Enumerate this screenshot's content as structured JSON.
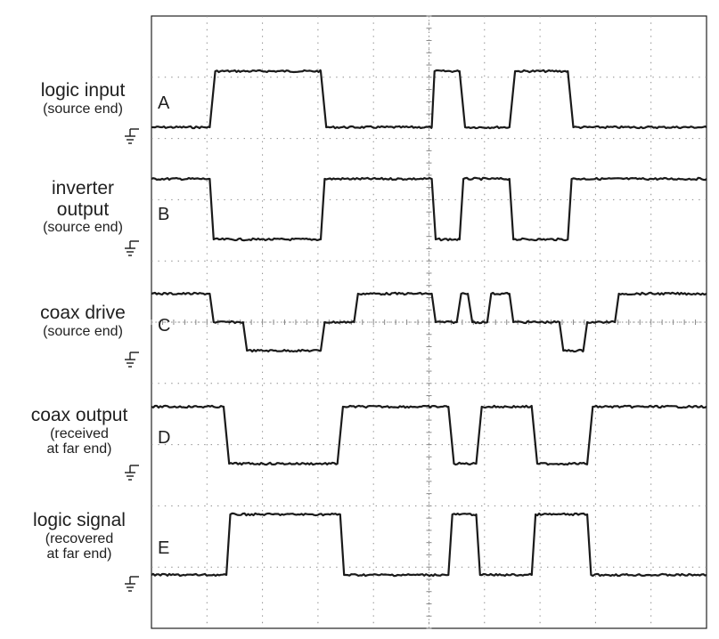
{
  "chart_data": {
    "type": "line",
    "title": "",
    "xlabel": "",
    "ylabel": "",
    "grid": true,
    "x_divisions": 10,
    "y_divisions": 10,
    "x_range": [
      0,
      10
    ],
    "series": [
      {
        "name": "A",
        "label_main": "logic input",
        "label_sub": [
          "(source end)"
        ],
        "baseline": 0,
        "x": [
          0,
          1.05,
          1.15,
          3.05,
          3.15,
          5.05,
          5.1,
          5.55,
          5.65,
          6.45,
          6.55,
          7.5,
          7.6,
          10
        ],
        "y": [
          0,
          0,
          1,
          1,
          0,
          0,
          1,
          1,
          0,
          0,
          1,
          1,
          0,
          0
        ]
      },
      {
        "name": "B",
        "label_main": "inverter",
        "label_sub_main": "output",
        "label_sub": [
          "(source end)"
        ],
        "baseline": 0,
        "x": [
          0,
          1.05,
          1.12,
          3.05,
          3.12,
          5.05,
          5.12,
          5.55,
          5.62,
          6.45,
          6.52,
          7.5,
          7.57,
          10
        ],
        "y": [
          1,
          1,
          0,
          0,
          1,
          1,
          0,
          0,
          1,
          1,
          0,
          0,
          1,
          1
        ]
      },
      {
        "name": "C",
        "label_main": "coax drive",
        "label_sub": [
          "(source end)"
        ],
        "baseline": 0,
        "x": [
          0,
          1.05,
          1.12,
          1.65,
          1.72,
          3.05,
          3.12,
          3.65,
          3.72,
          5.05,
          5.12,
          5.5,
          5.58,
          5.7,
          5.78,
          6.05,
          6.12,
          6.45,
          6.52,
          7.35,
          7.42,
          7.78,
          7.85,
          8.35,
          8.42,
          10
        ],
        "y": [
          1,
          1,
          0.5,
          0.5,
          0,
          0,
          0.5,
          0.5,
          1,
          1,
          0.5,
          0.5,
          1,
          1,
          0.5,
          0.5,
          1,
          1,
          0.5,
          0.5,
          0,
          0,
          0.5,
          0.5,
          1,
          1
        ]
      },
      {
        "name": "D",
        "label_main": "coax output",
        "label_sub": [
          "(received",
          "at far end)"
        ],
        "baseline": 0,
        "x": [
          0,
          1.3,
          1.4,
          3.35,
          3.45,
          5.35,
          5.45,
          5.85,
          5.95,
          6.85,
          6.95,
          7.85,
          7.95,
          10
        ],
        "y": [
          1,
          1,
          0,
          0,
          1,
          1,
          0,
          0,
          1,
          1,
          0,
          0,
          1,
          1
        ]
      },
      {
        "name": "E",
        "label_main": "logic signal",
        "label_sub": [
          "(recovered",
          "at far end)"
        ],
        "baseline": 0,
        "x": [
          0,
          1.35,
          1.42,
          3.4,
          3.47,
          5.35,
          5.42,
          5.85,
          5.92,
          6.85,
          6.92,
          7.85,
          7.92,
          10
        ],
        "y": [
          0,
          0,
          1,
          1,
          0,
          0,
          1,
          1,
          0,
          0,
          1,
          1,
          0,
          0
        ]
      }
    ]
  },
  "colors": {
    "trace": "#1a1a1a",
    "grid": "#8a8a8a",
    "frame": "#222222",
    "ground": "#1a1a1a"
  }
}
